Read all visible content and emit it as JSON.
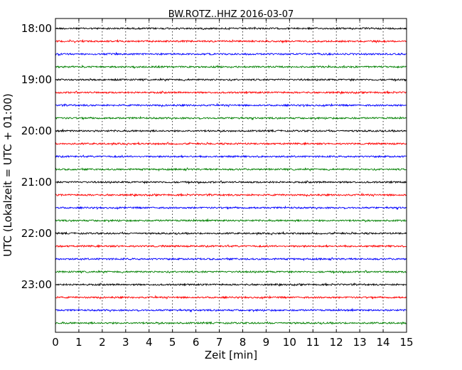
{
  "chart_data": {
    "type": "line",
    "title": "BW.ROTZ..HHZ 2016-03-07",
    "xlabel": "Zeit  [min]",
    "ylabel": "UTC (Lokalzeit = UTC + 01:00)",
    "xlim": [
      0,
      15
    ],
    "x_ticks": [
      "0",
      "1",
      "2",
      "3",
      "4",
      "5",
      "6",
      "7",
      "8",
      "9",
      "10",
      "11",
      "12",
      "13",
      "14",
      "15"
    ],
    "y_ticks": [
      "18:00",
      "19:00",
      "20:00",
      "21:00",
      "22:00",
      "23:00"
    ],
    "grid": "vertical dotted",
    "interval_minutes": 15,
    "color_cycle": [
      "#000000",
      "#ff0000",
      "#0000ff",
      "#008000"
    ],
    "traces": [
      "18:00",
      "18:15",
      "18:30",
      "18:45",
      "19:00",
      "19:15",
      "19:30",
      "19:45",
      "20:00",
      "20:15",
      "20:30",
      "20:45",
      "21:00",
      "21:15",
      "21:30",
      "21:45",
      "22:00",
      "22:15",
      "22:30",
      "22:45",
      "23:00",
      "23:15",
      "23:30",
      "23:45"
    ]
  }
}
